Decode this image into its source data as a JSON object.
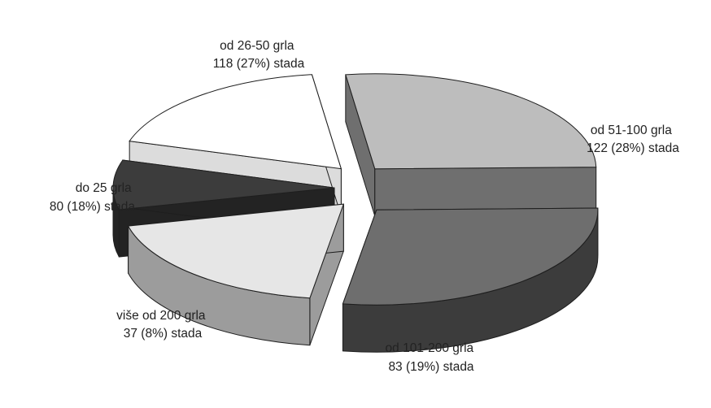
{
  "chart_data": {
    "type": "pie",
    "style": "3d-exploded",
    "title": "",
    "legend": "none",
    "slices": [
      {
        "name": "od 26-50 grla",
        "value": 118,
        "percent_label": "118 (27%) stada",
        "color": "#bdbdbd",
        "side_color": "#6f6f6f"
      },
      {
        "name": "od 51-100 grla",
        "value": 122,
        "percent_label": "122 (28%) stada",
        "color": "#6e6e6e",
        "side_color": "#3c3c3c"
      },
      {
        "name": "od 101-200 grla",
        "value": 83,
        "percent_label": "83 (19%) stada",
        "color": "#e6e6e6",
        "side_color": "#9c9c9c"
      },
      {
        "name": "više od 200 grla",
        "value": 37,
        "percent_label": "37 (8%) stada",
        "color": "#3c3c3c",
        "side_color": "#232323"
      },
      {
        "name": "do 25 grla",
        "value": 80,
        "percent_label": "80 (18%) stada",
        "color": "#ffffff",
        "side_color": "#dcdcdc"
      }
    ]
  }
}
